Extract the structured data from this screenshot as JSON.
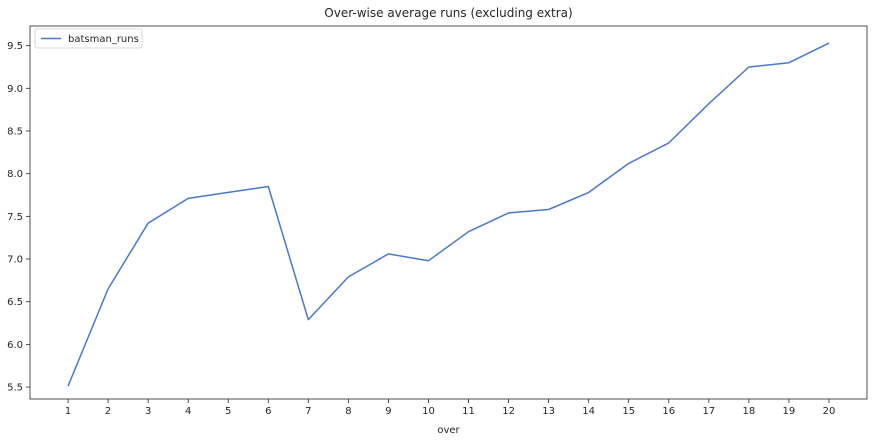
{
  "chart_data": {
    "type": "line",
    "title": "Over-wise average runs (excluding extra)",
    "xlabel": "over",
    "ylabel": "",
    "x": [
      1,
      2,
      3,
      4,
      5,
      6,
      7,
      8,
      9,
      10,
      11,
      12,
      13,
      14,
      15,
      16,
      17,
      18,
      19,
      20
    ],
    "series": [
      {
        "name": "batsman_runs",
        "values": [
          5.51,
          6.65,
          7.42,
          7.71,
          7.78,
          7.85,
          6.29,
          6.79,
          7.06,
          6.98,
          7.32,
          7.54,
          7.58,
          7.78,
          8.12,
          8.36,
          8.82,
          9.25,
          9.3,
          9.53
        ]
      }
    ],
    "xticks": [
      "1",
      "2",
      "3",
      "4",
      "5",
      "6",
      "7",
      "8",
      "9",
      "10",
      "11",
      "12",
      "13",
      "14",
      "15",
      "16",
      "17",
      "18",
      "19",
      "20"
    ],
    "yticks": [
      "5.5",
      "6.0",
      "6.5",
      "7.0",
      "7.5",
      "8.0",
      "8.5",
      "9.0",
      "9.5"
    ],
    "ylim": [
      5.36,
      9.73
    ],
    "xlim": [
      0.05,
      20.95
    ],
    "grid": false,
    "legend_position": "top-left",
    "colors": {
      "line": "#4878cf",
      "axis": "#262626",
      "background": "#ffffff"
    }
  }
}
